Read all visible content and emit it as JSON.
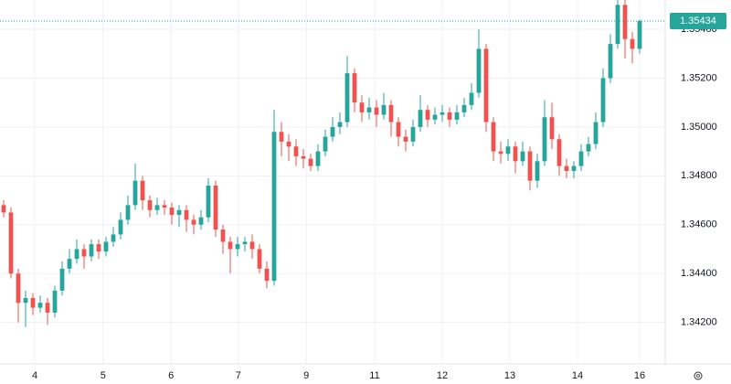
{
  "chart_data": {
    "type": "candlestick",
    "up_color": "#26a69a",
    "down_color": "#ef5350",
    "grid": true,
    "xlim": [
      -0.5,
      90.5
    ],
    "ylim": [
      1.3403,
      1.3552
    ],
    "yticks": [
      {
        "value": 1.342,
        "label": "1.34200"
      },
      {
        "value": 1.344,
        "label": "1.34400"
      },
      {
        "value": 1.346,
        "label": "1.34600"
      },
      {
        "value": 1.348,
        "label": "1.34800"
      },
      {
        "value": 1.35,
        "label": "1.35000"
      },
      {
        "value": 1.352,
        "label": "1.35200"
      },
      {
        "value": 1.354,
        "label": "1.35400"
      }
    ],
    "xticks": [
      {
        "value": 4.25,
        "label": "4"
      },
      {
        "value": 13.6,
        "label": "5"
      },
      {
        "value": 22.9,
        "label": "6"
      },
      {
        "value": 32.1,
        "label": "7"
      },
      {
        "value": 41.4,
        "label": "9"
      },
      {
        "value": 50.75,
        "label": "11"
      },
      {
        "value": 60,
        "label": "12"
      },
      {
        "value": 69.25,
        "label": "13"
      },
      {
        "value": 78.5,
        "label": "14"
      },
      {
        "value": 87,
        "label": "16"
      }
    ],
    "last_price": {
      "value": 1.35434,
      "label": "1.35434"
    },
    "candles": [
      [
        1.3468,
        1.347,
        1.3463,
        1.3465
      ],
      [
        1.3465,
        1.3467,
        1.3438,
        1.344
      ],
      [
        1.344,
        1.3442,
        1.342,
        1.3428
      ],
      [
        1.3428,
        1.3433,
        1.3418,
        1.343
      ],
      [
        1.343,
        1.3432,
        1.3423,
        1.3426
      ],
      [
        1.3426,
        1.3431,
        1.3424,
        1.3428
      ],
      [
        1.3428,
        1.343,
        1.3419,
        1.3424
      ],
      [
        1.3424,
        1.3435,
        1.3422,
        1.3433
      ],
      [
        1.3433,
        1.3445,
        1.3431,
        1.3442
      ],
      [
        1.3442,
        1.345,
        1.344,
        1.3446
      ],
      [
        1.3446,
        1.3454,
        1.3444,
        1.345
      ],
      [
        1.345,
        1.3452,
        1.3442,
        1.3447
      ],
      [
        1.3447,
        1.3454,
        1.3445,
        1.3452
      ],
      [
        1.3452,
        1.3454,
        1.3446,
        1.3449
      ],
      [
        1.3449,
        1.3455,
        1.3447,
        1.3453
      ],
      [
        1.3453,
        1.3459,
        1.3451,
        1.3456
      ],
      [
        1.3456,
        1.3465,
        1.3454,
        1.3462
      ],
      [
        1.3462,
        1.3472,
        1.346,
        1.3468
      ],
      [
        1.3468,
        1.3485,
        1.3466,
        1.3478
      ],
      [
        1.3478,
        1.348,
        1.3466,
        1.347
      ],
      [
        1.347,
        1.3472,
        1.3463,
        1.3466
      ],
      [
        1.3466,
        1.3471,
        1.3464,
        1.3468
      ],
      [
        1.3468,
        1.347,
        1.3464,
        1.3467
      ],
      [
        1.3467,
        1.3469,
        1.346,
        1.3464
      ],
      [
        1.3464,
        1.3468,
        1.3459,
        1.3466
      ],
      [
        1.3466,
        1.3468,
        1.3457,
        1.3462
      ],
      [
        1.3462,
        1.3464,
        1.3456,
        1.346
      ],
      [
        1.346,
        1.3466,
        1.3458,
        1.3463
      ],
      [
        1.3463,
        1.3479,
        1.3461,
        1.3476
      ],
      [
        1.3476,
        1.3478,
        1.3455,
        1.3458
      ],
      [
        1.3458,
        1.346,
        1.3448,
        1.3453
      ],
      [
        1.3453,
        1.3455,
        1.344,
        1.345
      ],
      [
        1.345,
        1.3455,
        1.3447,
        1.3452
      ],
      [
        1.3452,
        1.3455,
        1.3449,
        1.3453
      ],
      [
        1.3453,
        1.3456,
        1.3446,
        1.345
      ],
      [
        1.345,
        1.3452,
        1.344,
        1.3442
      ],
      [
        1.3442,
        1.3445,
        1.3434,
        1.3437
      ],
      [
        1.3437,
        1.3507,
        1.3435,
        1.3498
      ],
      [
        1.3498,
        1.3502,
        1.3488,
        1.3494
      ],
      [
        1.3494,
        1.3497,
        1.3486,
        1.3492
      ],
      [
        1.3492,
        1.3495,
        1.3484,
        1.3488
      ],
      [
        1.3488,
        1.3491,
        1.3483,
        1.3487
      ],
      [
        1.3487,
        1.3489,
        1.3482,
        1.3484
      ],
      [
        1.3484,
        1.3493,
        1.3482,
        1.349
      ],
      [
        1.349,
        1.3499,
        1.3488,
        1.3496
      ],
      [
        1.3496,
        1.3504,
        1.3494,
        1.35
      ],
      [
        1.35,
        1.3506,
        1.3497,
        1.3502
      ],
      [
        1.3502,
        1.3529,
        1.35,
        1.3522
      ],
      [
        1.3522,
        1.3524,
        1.3506,
        1.351
      ],
      [
        1.351,
        1.3513,
        1.3502,
        1.3506
      ],
      [
        1.3506,
        1.3512,
        1.3503,
        1.3508
      ],
      [
        1.3508,
        1.3511,
        1.35,
        1.3505
      ],
      [
        1.3505,
        1.3514,
        1.3503,
        1.3509
      ],
      [
        1.3509,
        1.3511,
        1.3496,
        1.3502
      ],
      [
        1.3502,
        1.3504,
        1.3492,
        1.3496
      ],
      [
        1.3496,
        1.3499,
        1.349,
        1.3494
      ],
      [
        1.3494,
        1.3503,
        1.3492,
        1.35
      ],
      [
        1.35,
        1.3513,
        1.3498,
        1.3507
      ],
      [
        1.3507,
        1.3509,
        1.35,
        1.3503
      ],
      [
        1.3503,
        1.3508,
        1.3501,
        1.3505
      ],
      [
        1.3505,
        1.3509,
        1.3502,
        1.3506
      ],
      [
        1.3506,
        1.3508,
        1.35,
        1.3503
      ],
      [
        1.3503,
        1.3509,
        1.3501,
        1.3506
      ],
      [
        1.3506,
        1.3512,
        1.3504,
        1.3509
      ],
      [
        1.3509,
        1.3518,
        1.3507,
        1.3514
      ],
      [
        1.3514,
        1.354,
        1.3512,
        1.3532
      ],
      [
        1.3532,
        1.3534,
        1.3498,
        1.3502
      ],
      [
        1.3502,
        1.3504,
        1.3486,
        1.349
      ],
      [
        1.349,
        1.3494,
        1.3485,
        1.3489
      ],
      [
        1.3489,
        1.3495,
        1.3486,
        1.3492
      ],
      [
        1.3492,
        1.3494,
        1.3481,
        1.3486
      ],
      [
        1.3486,
        1.3494,
        1.3484,
        1.349
      ],
      [
        1.349,
        1.3492,
        1.3474,
        1.3478
      ],
      [
        1.3478,
        1.3489,
        1.3475,
        1.3486
      ],
      [
        1.3486,
        1.3511,
        1.3484,
        1.3504
      ],
      [
        1.3504,
        1.351,
        1.3491,
        1.3495
      ],
      [
        1.3495,
        1.3497,
        1.348,
        1.3484
      ],
      [
        1.3484,
        1.3487,
        1.3479,
        1.3482
      ],
      [
        1.3482,
        1.3486,
        1.3479,
        1.3484
      ],
      [
        1.3484,
        1.3493,
        1.3482,
        1.349
      ],
      [
        1.349,
        1.3496,
        1.3488,
        1.3493
      ],
      [
        1.3493,
        1.3506,
        1.3491,
        1.3502
      ],
      [
        1.3502,
        1.3524,
        1.35,
        1.352
      ],
      [
        1.352,
        1.3538,
        1.3518,
        1.3534
      ],
      [
        1.3534,
        1.3552,
        1.3532,
        1.355
      ],
      [
        1.355,
        1.3552,
        1.3528,
        1.3536
      ],
      [
        1.3536,
        1.3539,
        1.3526,
        1.3532
      ],
      [
        1.3532,
        1.3544,
        1.353,
        1.35434
      ]
    ]
  }
}
